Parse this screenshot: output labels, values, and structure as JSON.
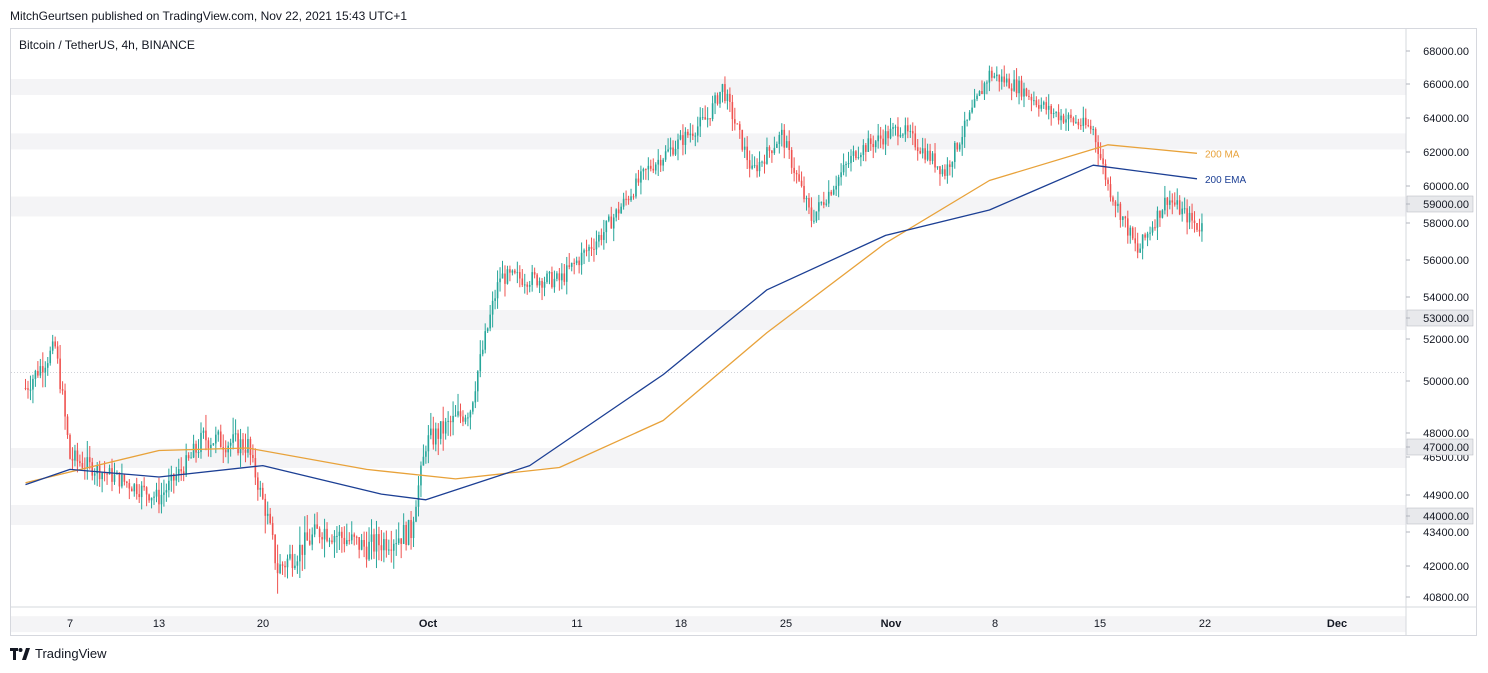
{
  "header": {
    "published_line": "MitchGeurtsen published on TradingView.com, Nov 22, 2021 15:43 UTC+1"
  },
  "chart_data": {
    "type": "candlestick",
    "title": "Bitcoin / TetherUS, 4h, BINANCE",
    "symbol_legend": "Bitcoin / TetherUS, 4h, BINANCE",
    "x_tick_labels": [
      "7",
      "13",
      "20",
      "Oct",
      "11",
      "18",
      "25",
      "Nov",
      "8",
      "15",
      "22",
      "Dec"
    ],
    "y_tick_labels": [
      "68000.00",
      "66000.00",
      "64000.00",
      "62000.00",
      "60000.00",
      "58000.00",
      "56000.00",
      "54000.00",
      "52000.00",
      "50000.00",
      "48000.00",
      "46500.00",
      "44900.00",
      "43400.00",
      "42000.00",
      "40800.00"
    ],
    "horizontal_levels": [
      "59000.00",
      "53000.00",
      "47000.00",
      "44000.00"
    ],
    "colors": {
      "up": "#26a69a",
      "down": "#ef5350",
      "ma": "#e8a23a",
      "ema": "#1c3f94",
      "level_band": "#f4f4f6",
      "level_label_bg": "#e8e9ec"
    },
    "series": [
      {
        "name": "200 MA",
        "color": "#e8a23a"
      },
      {
        "name": "200 EMA",
        "color": "#1c3f94"
      }
    ],
    "approx_ohlc_waypoints": [
      {
        "date": "2021-09-04",
        "close": 49800
      },
      {
        "date": "2021-09-06",
        "close": 51700
      },
      {
        "date": "2021-09-07",
        "close": 47000
      },
      {
        "date": "2021-09-10",
        "close": 46000
      },
      {
        "date": "2021-09-13",
        "close": 44900
      },
      {
        "date": "2021-09-16",
        "close": 47800
      },
      {
        "date": "2021-09-19",
        "close": 47500
      },
      {
        "date": "2021-09-21",
        "close": 42000
      },
      {
        "date": "2021-09-24",
        "close": 43500
      },
      {
        "date": "2021-09-27",
        "close": 42800
      },
      {
        "date": "2021-09-30",
        "close": 43400
      },
      {
        "date": "2021-10-01",
        "close": 47600
      },
      {
        "date": "2021-10-04",
        "close": 49000
      },
      {
        "date": "2021-10-06",
        "close": 55200
      },
      {
        "date": "2021-10-10",
        "close": 55000
      },
      {
        "date": "2021-10-13",
        "close": 57600
      },
      {
        "date": "2021-10-16",
        "close": 61200
      },
      {
        "date": "2021-10-20",
        "close": 64200
      },
      {
        "date": "2021-10-21",
        "close": 66000
      },
      {
        "date": "2021-10-23",
        "close": 61000
      },
      {
        "date": "2021-10-25",
        "close": 63200
      },
      {
        "date": "2021-10-27",
        "close": 58300
      },
      {
        "date": "2021-10-30",
        "close": 62200
      },
      {
        "date": "2021-11-02",
        "close": 63600
      },
      {
        "date": "2021-11-05",
        "close": 61000
      },
      {
        "date": "2021-11-08",
        "close": 66800
      },
      {
        "date": "2021-11-10",
        "close": 66000
      },
      {
        "date": "2021-11-12",
        "close": 64600
      },
      {
        "date": "2021-11-15",
        "close": 63500
      },
      {
        "date": "2021-11-16",
        "close": 60200
      },
      {
        "date": "2021-11-18",
        "close": 56500
      },
      {
        "date": "2021-11-20",
        "close": 59500
      },
      {
        "date": "2021-11-22",
        "close": 57900
      }
    ],
    "ma_200_waypoints": [
      {
        "date": "2021-09-04",
        "value": 45700
      },
      {
        "date": "2021-09-13",
        "value": 47300
      },
      {
        "date": "2021-09-19",
        "value": 47400
      },
      {
        "date": "2021-09-27",
        "value": 46400
      },
      {
        "date": "2021-10-03",
        "value": 45900
      },
      {
        "date": "2021-10-10",
        "value": 46500
      },
      {
        "date": "2021-10-17",
        "value": 48500
      },
      {
        "date": "2021-10-24",
        "value": 52400
      },
      {
        "date": "2021-11-01",
        "value": 57000
      },
      {
        "date": "2021-11-08",
        "value": 60500
      },
      {
        "date": "2021-11-16",
        "value": 62600
      },
      {
        "date": "2021-11-22",
        "value": 62100
      }
    ],
    "ema_200_waypoints": [
      {
        "date": "2021-09-04",
        "value": 45600
      },
      {
        "date": "2021-09-07",
        "value": 46400
      },
      {
        "date": "2021-09-13",
        "value": 46000
      },
      {
        "date": "2021-09-20",
        "value": 46600
      },
      {
        "date": "2021-09-28",
        "value": 45100
      },
      {
        "date": "2021-10-01",
        "value": 44800
      },
      {
        "date": "2021-10-08",
        "value": 46600
      },
      {
        "date": "2021-10-17",
        "value": 50400
      },
      {
        "date": "2021-10-24",
        "value": 54500
      },
      {
        "date": "2021-11-01",
        "value": 57400
      },
      {
        "date": "2021-11-08",
        "value": 58800
      },
      {
        "date": "2021-11-15",
        "value": 61400
      },
      {
        "date": "2021-11-22",
        "value": 60600
      }
    ],
    "legend_placement": "right, next to last values"
  },
  "footer": {
    "brand": "TradingView"
  }
}
